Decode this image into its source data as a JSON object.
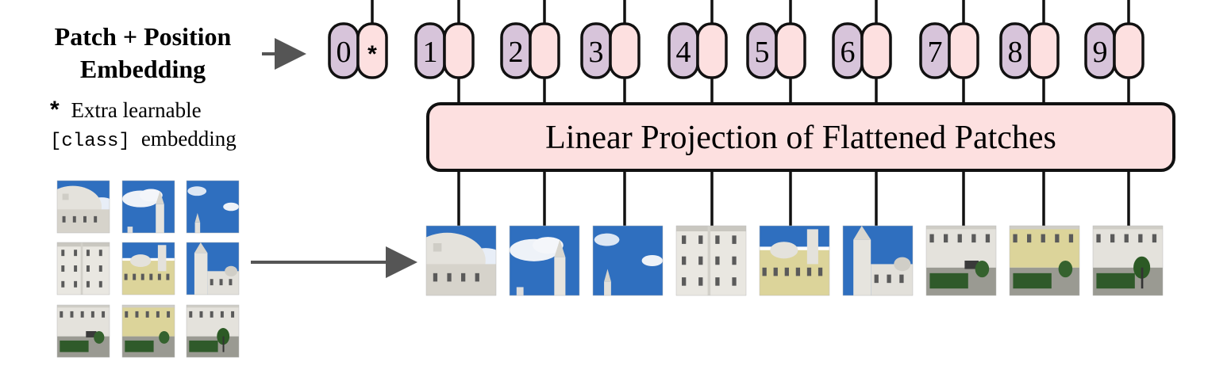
{
  "title": {
    "line1": "Patch + Position",
    "line2": "Embedding"
  },
  "note": {
    "star": "*",
    "line1": "Extra learnable",
    "code": "[class]",
    "line2_rest": "embedding"
  },
  "projection_label": "Linear Projection of Flattened Patches",
  "class_token_marker": "*",
  "position_labels": [
    "0",
    "1",
    "2",
    "3",
    "4",
    "5",
    "6",
    "7",
    "8",
    "9"
  ],
  "colors": {
    "position_fill": "#d7c4da",
    "embedding_fill": "#fde0e0",
    "projection_fill": "#fde0e0",
    "stroke": "#111111",
    "arrow": "#555555",
    "sky": "#2f6fbf",
    "building": "#d9d6cc",
    "facade": "#dcd49a",
    "hedge": "#2f5a2a",
    "road": "#9a9a92"
  },
  "patch_scenes": [
    "dome-left",
    "sky-tower",
    "sky-spire",
    "facade-left",
    "facade-centre",
    "facade-right",
    "street-left",
    "street-centre",
    "street-right"
  ]
}
